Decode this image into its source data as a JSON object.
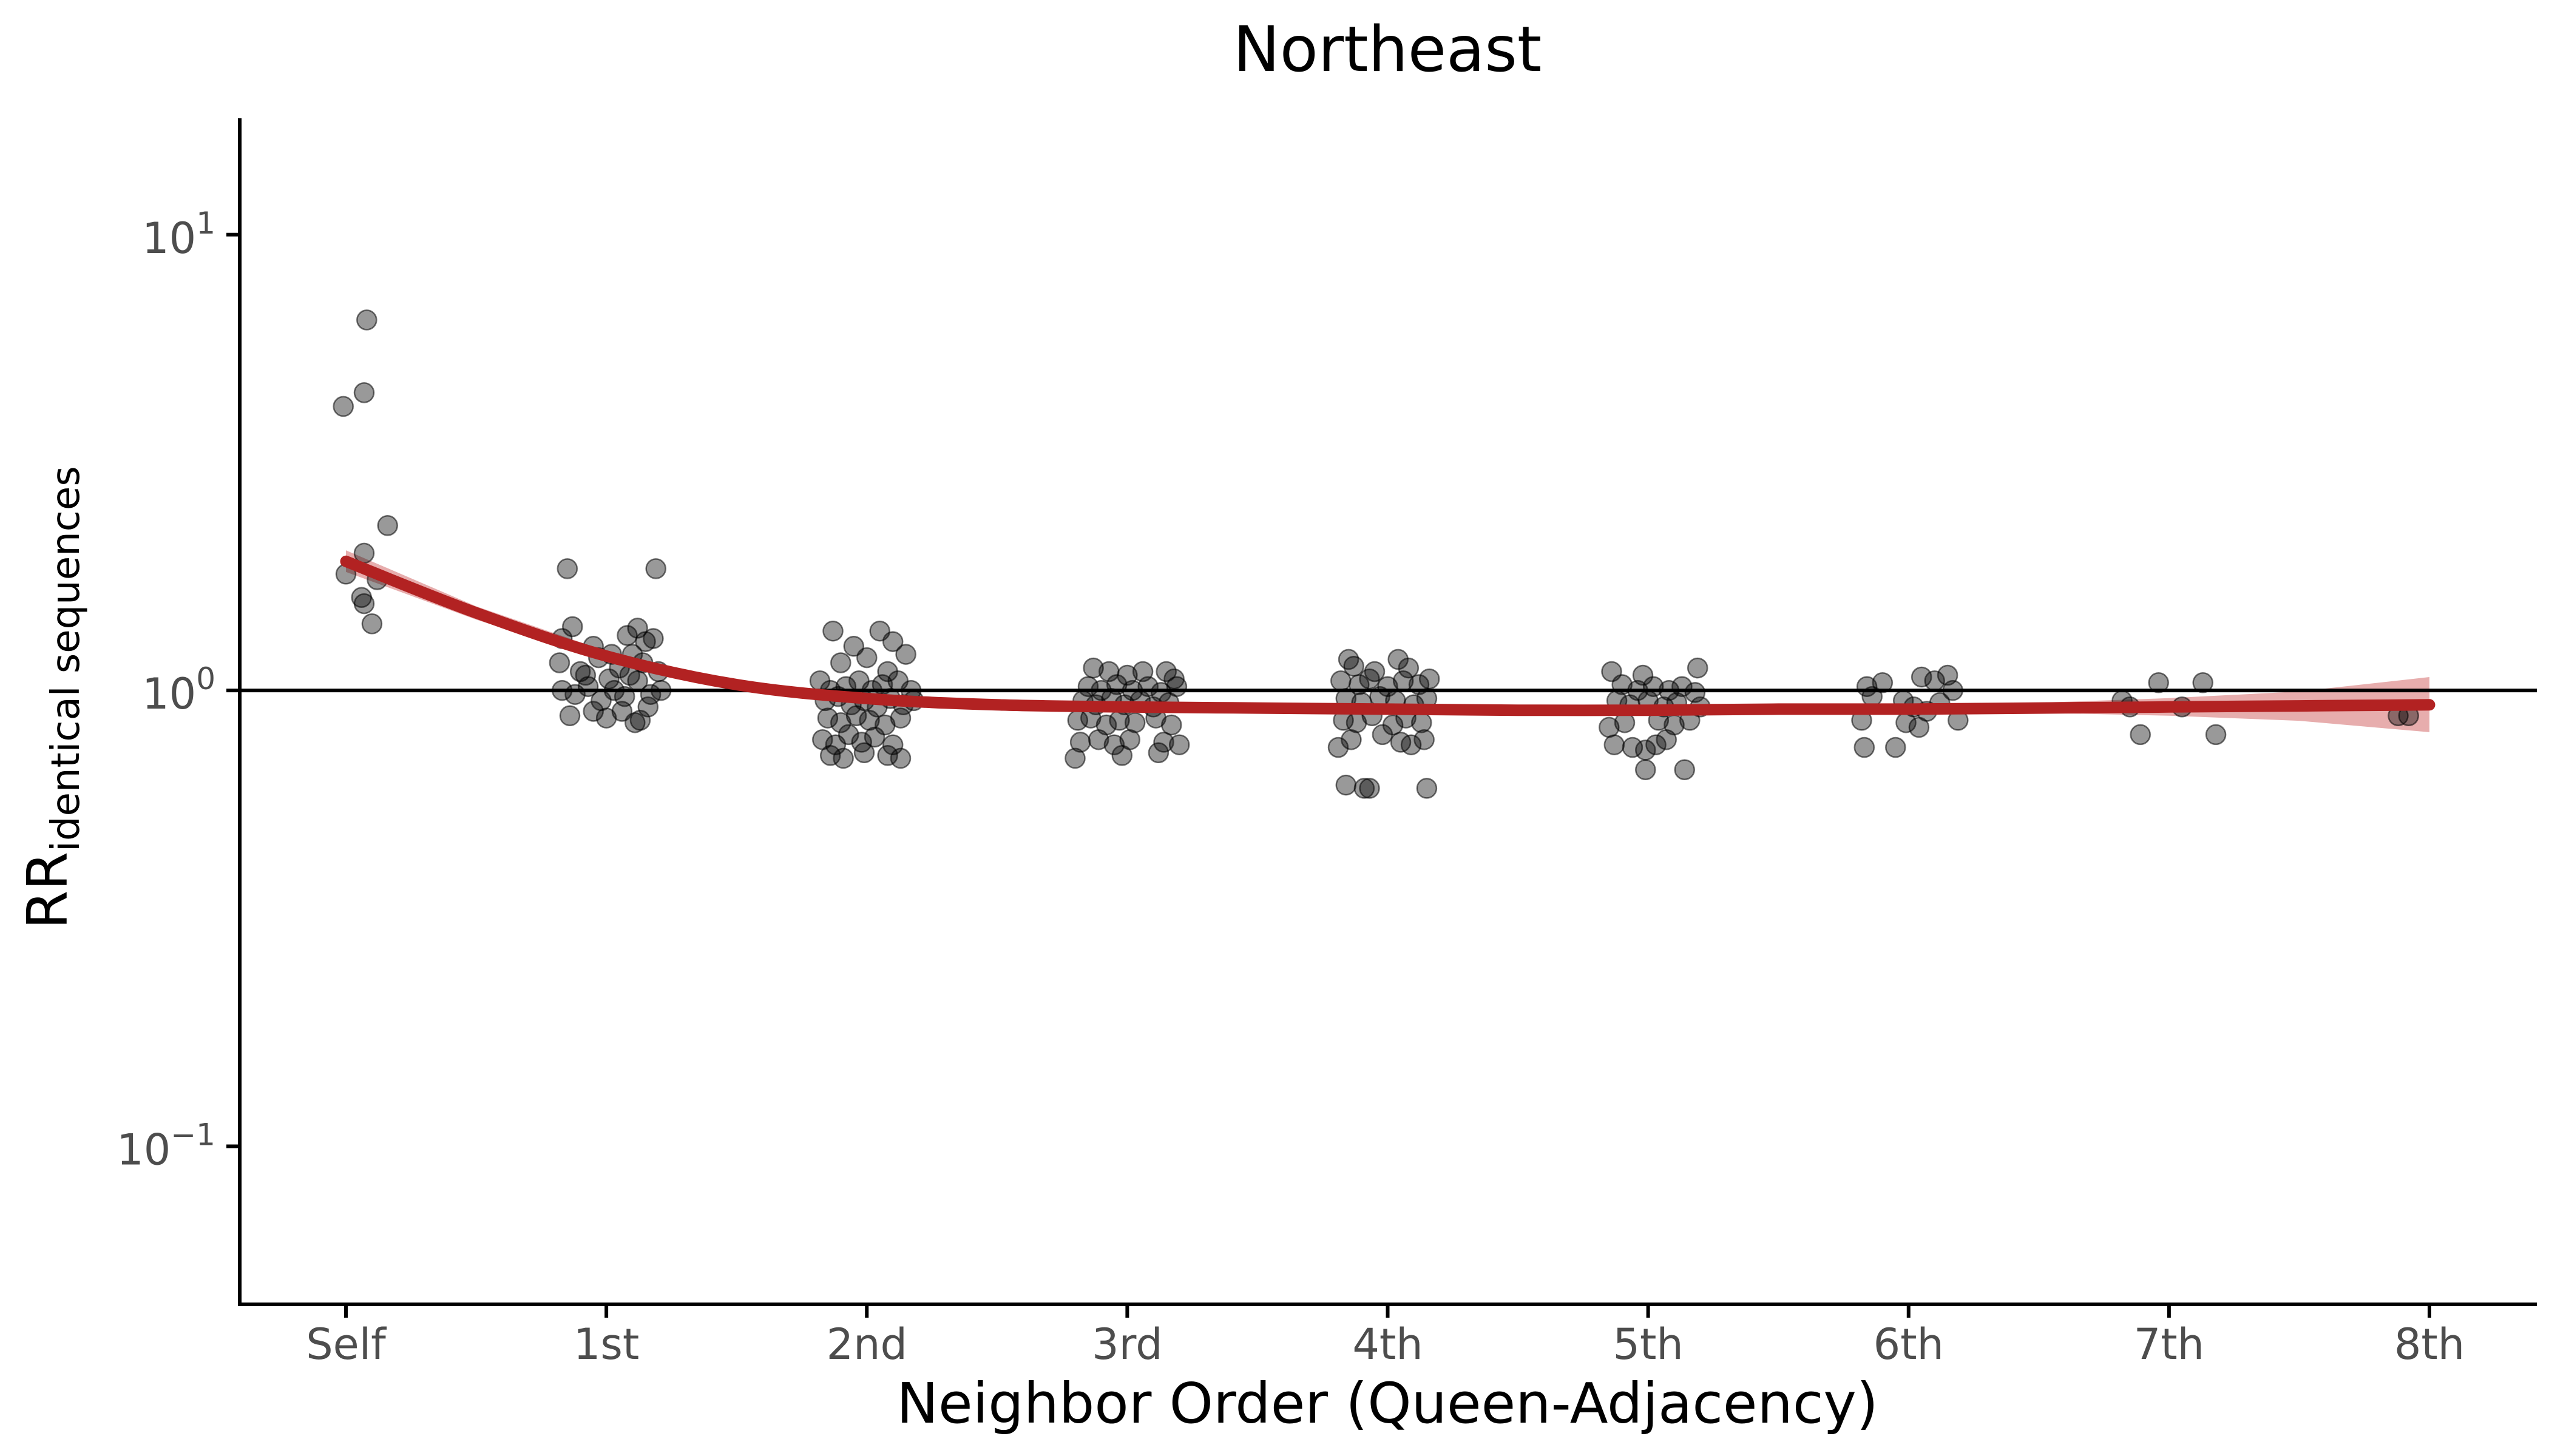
{
  "chart_data": {
    "type": "scatter",
    "title": "Northeast",
    "xlabel": "Neighbor Order (Queen-Adjacency)",
    "ylabel": {
      "main": "RR",
      "subscript": "identical sequences"
    },
    "y_scale": "log10",
    "ylim": [
      0.045,
      18
    ],
    "y_ticks": [
      {
        "value": 0.1,
        "base": "10",
        "exponent": "−1"
      },
      {
        "value": 1,
        "base": "10",
        "exponent": "0"
      },
      {
        "value": 10,
        "base": "10",
        "exponent": "1"
      }
    ],
    "categories": [
      "Self",
      "1st",
      "2nd",
      "3rd",
      "4th",
      "5th",
      "6th",
      "7th",
      "8th"
    ],
    "reference_line": {
      "y": 1,
      "color": "#000000"
    },
    "grid": false,
    "legend": "none",
    "colors": {
      "points": "#000000",
      "point_opacity": 0.4,
      "smooth_line": "#b22222",
      "confidence_band": "#d46a6a",
      "band_opacity": 0.55
    },
    "points": [
      {
        "x": -0.01,
        "y": 4.2
      },
      {
        "x": 0.07,
        "y": 4.5
      },
      {
        "x": 0.08,
        "y": 6.5
      },
      {
        "x": 0.16,
        "y": 2.3
      },
      {
        "x": 0.0,
        "y": 1.8
      },
      {
        "x": 0.07,
        "y": 2.0
      },
      {
        "x": 0.12,
        "y": 1.75
      },
      {
        "x": 0.06,
        "y": 1.6
      },
      {
        "x": 0.07,
        "y": 1.55
      },
      {
        "x": 0.1,
        "y": 1.4
      },
      {
        "x": 0.85,
        "y": 1.85
      },
      {
        "x": 1.19,
        "y": 1.85
      },
      {
        "x": 0.83,
        "y": 1.3
      },
      {
        "x": 0.87,
        "y": 1.38
      },
      {
        "x": 0.95,
        "y": 1.25
      },
      {
        "x": 1.02,
        "y": 1.2
      },
      {
        "x": 1.08,
        "y": 1.32
      },
      {
        "x": 1.12,
        "y": 1.37
      },
      {
        "x": 1.15,
        "y": 1.28
      },
      {
        "x": 1.18,
        "y": 1.3
      },
      {
        "x": 0.82,
        "y": 1.15
      },
      {
        "x": 0.9,
        "y": 1.1
      },
      {
        "x": 0.97,
        "y": 1.18
      },
      {
        "x": 1.05,
        "y": 1.12
      },
      {
        "x": 1.1,
        "y": 1.2
      },
      {
        "x": 1.14,
        "y": 1.15
      },
      {
        "x": 1.2,
        "y": 1.1
      },
      {
        "x": 0.83,
        "y": 1.0
      },
      {
        "x": 0.88,
        "y": 0.98
      },
      {
        "x": 0.93,
        "y": 1.02
      },
      {
        "x": 0.98,
        "y": 0.95
      },
      {
        "x": 1.03,
        "y": 1.0
      },
      {
        "x": 1.07,
        "y": 0.97
      },
      {
        "x": 1.12,
        "y": 1.05
      },
      {
        "x": 1.17,
        "y": 0.98
      },
      {
        "x": 1.21,
        "y": 1.0
      },
      {
        "x": 0.86,
        "y": 0.88
      },
      {
        "x": 0.95,
        "y": 0.9
      },
      {
        "x": 1.0,
        "y": 0.87
      },
      {
        "x": 1.06,
        "y": 0.9
      },
      {
        "x": 1.11,
        "y": 0.85
      },
      {
        "x": 1.13,
        "y": 0.86
      },
      {
        "x": 1.16,
        "y": 0.92
      },
      {
        "x": 0.92,
        "y": 1.08
      },
      {
        "x": 1.01,
        "y": 1.06
      },
      {
        "x": 1.09,
        "y": 1.08
      },
      {
        "x": 1.87,
        "y": 1.35
      },
      {
        "x": 2.05,
        "y": 1.35
      },
      {
        "x": 2.1,
        "y": 1.28
      },
      {
        "x": 1.95,
        "y": 1.25
      },
      {
        "x": 2.15,
        "y": 1.2
      },
      {
        "x": 1.9,
        "y": 1.15
      },
      {
        "x": 2.0,
        "y": 1.18
      },
      {
        "x": 2.08,
        "y": 1.1
      },
      {
        "x": 1.82,
        "y": 1.05
      },
      {
        "x": 1.86,
        "y": 1.0
      },
      {
        "x": 1.92,
        "y": 1.02
      },
      {
        "x": 1.97,
        "y": 1.05
      },
      {
        "x": 2.02,
        "y": 1.0
      },
      {
        "x": 2.06,
        "y": 1.03
      },
      {
        "x": 2.12,
        "y": 1.05
      },
      {
        "x": 2.17,
        "y": 1.0
      },
      {
        "x": 1.84,
        "y": 0.95
      },
      {
        "x": 1.89,
        "y": 0.97
      },
      {
        "x": 1.94,
        "y": 0.93
      },
      {
        "x": 1.99,
        "y": 0.95
      },
      {
        "x": 2.04,
        "y": 0.92
      },
      {
        "x": 2.09,
        "y": 0.96
      },
      {
        "x": 2.14,
        "y": 0.93
      },
      {
        "x": 2.18,
        "y": 0.95
      },
      {
        "x": 1.85,
        "y": 0.87
      },
      {
        "x": 1.9,
        "y": 0.85
      },
      {
        "x": 1.96,
        "y": 0.88
      },
      {
        "x": 2.01,
        "y": 0.86
      },
      {
        "x": 2.07,
        "y": 0.84
      },
      {
        "x": 2.13,
        "y": 0.87
      },
      {
        "x": 1.83,
        "y": 0.78
      },
      {
        "x": 1.88,
        "y": 0.76
      },
      {
        "x": 1.93,
        "y": 0.8
      },
      {
        "x": 1.98,
        "y": 0.77
      },
      {
        "x": 2.03,
        "y": 0.79
      },
      {
        "x": 2.1,
        "y": 0.76
      },
      {
        "x": 1.86,
        "y": 0.72
      },
      {
        "x": 1.91,
        "y": 0.71
      },
      {
        "x": 1.99,
        "y": 0.73
      },
      {
        "x": 2.08,
        "y": 0.72
      },
      {
        "x": 2.13,
        "y": 0.71
      },
      {
        "x": 2.87,
        "y": 1.12
      },
      {
        "x": 2.93,
        "y": 1.1
      },
      {
        "x": 3.0,
        "y": 1.08
      },
      {
        "x": 3.06,
        "y": 1.1
      },
      {
        "x": 3.15,
        "y": 1.1
      },
      {
        "x": 3.18,
        "y": 1.06
      },
      {
        "x": 2.85,
        "y": 1.02
      },
      {
        "x": 2.9,
        "y": 1.0
      },
      {
        "x": 2.96,
        "y": 1.03
      },
      {
        "x": 3.02,
        "y": 1.0
      },
      {
        "x": 3.08,
        "y": 1.02
      },
      {
        "x": 3.13,
        "y": 0.99
      },
      {
        "x": 3.19,
        "y": 1.02
      },
      {
        "x": 2.83,
        "y": 0.95
      },
      {
        "x": 2.88,
        "y": 0.93
      },
      {
        "x": 2.94,
        "y": 0.96
      },
      {
        "x": 2.99,
        "y": 0.93
      },
      {
        "x": 3.05,
        "y": 0.95
      },
      {
        "x": 3.1,
        "y": 0.92
      },
      {
        "x": 3.16,
        "y": 0.94
      },
      {
        "x": 2.81,
        "y": 0.86
      },
      {
        "x": 2.86,
        "y": 0.87
      },
      {
        "x": 2.92,
        "y": 0.84
      },
      {
        "x": 2.97,
        "y": 0.86
      },
      {
        "x": 3.03,
        "y": 0.85
      },
      {
        "x": 3.11,
        "y": 0.87
      },
      {
        "x": 3.17,
        "y": 0.84
      },
      {
        "x": 2.82,
        "y": 0.77
      },
      {
        "x": 2.89,
        "y": 0.78
      },
      {
        "x": 2.95,
        "y": 0.76
      },
      {
        "x": 3.01,
        "y": 0.78
      },
      {
        "x": 3.14,
        "y": 0.77
      },
      {
        "x": 3.2,
        "y": 0.76
      },
      {
        "x": 2.8,
        "y": 0.71
      },
      {
        "x": 2.98,
        "y": 0.72
      },
      {
        "x": 3.12,
        "y": 0.73
      },
      {
        "x": 3.85,
        "y": 1.17
      },
      {
        "x": 3.87,
        "y": 1.13
      },
      {
        "x": 4.04,
        "y": 1.17
      },
      {
        "x": 4.08,
        "y": 1.12
      },
      {
        "x": 3.95,
        "y": 1.1
      },
      {
        "x": 3.82,
        "y": 1.05
      },
      {
        "x": 3.89,
        "y": 1.03
      },
      {
        "x": 3.93,
        "y": 1.06
      },
      {
        "x": 4.0,
        "y": 1.02
      },
      {
        "x": 4.06,
        "y": 1.05
      },
      {
        "x": 4.12,
        "y": 1.03
      },
      {
        "x": 4.16,
        "y": 1.06
      },
      {
        "x": 3.84,
        "y": 0.96
      },
      {
        "x": 3.9,
        "y": 0.94
      },
      {
        "x": 3.97,
        "y": 0.97
      },
      {
        "x": 4.03,
        "y": 0.95
      },
      {
        "x": 4.1,
        "y": 0.93
      },
      {
        "x": 4.15,
        "y": 0.96
      },
      {
        "x": 3.83,
        "y": 0.86
      },
      {
        "x": 3.88,
        "y": 0.85
      },
      {
        "x": 3.94,
        "y": 0.88
      },
      {
        "x": 4.02,
        "y": 0.84
      },
      {
        "x": 4.07,
        "y": 0.87
      },
      {
        "x": 4.13,
        "y": 0.85
      },
      {
        "x": 3.86,
        "y": 0.78
      },
      {
        "x": 3.98,
        "y": 0.8
      },
      {
        "x": 4.05,
        "y": 0.77
      },
      {
        "x": 4.09,
        "y": 0.76
      },
      {
        "x": 4.14,
        "y": 0.78
      },
      {
        "x": 3.81,
        "y": 0.75
      },
      {
        "x": 3.84,
        "y": 0.62
      },
      {
        "x": 3.91,
        "y": 0.61
      },
      {
        "x": 3.93,
        "y": 0.61
      },
      {
        "x": 4.15,
        "y": 0.61
      },
      {
        "x": 4.86,
        "y": 1.1
      },
      {
        "x": 4.98,
        "y": 1.08
      },
      {
        "x": 5.19,
        "y": 1.12
      },
      {
        "x": 4.9,
        "y": 1.03
      },
      {
        "x": 4.96,
        "y": 1.0
      },
      {
        "x": 5.02,
        "y": 1.02
      },
      {
        "x": 5.08,
        "y": 1.0
      },
      {
        "x": 5.13,
        "y": 1.02
      },
      {
        "x": 5.18,
        "y": 0.99
      },
      {
        "x": 4.88,
        "y": 0.95
      },
      {
        "x": 4.93,
        "y": 0.93
      },
      {
        "x": 5.0,
        "y": 0.95
      },
      {
        "x": 5.06,
        "y": 0.92
      },
      {
        "x": 5.11,
        "y": 0.94
      },
      {
        "x": 5.2,
        "y": 0.92
      },
      {
        "x": 4.85,
        "y": 0.83
      },
      {
        "x": 4.91,
        "y": 0.85
      },
      {
        "x": 5.04,
        "y": 0.86
      },
      {
        "x": 5.1,
        "y": 0.84
      },
      {
        "x": 5.16,
        "y": 0.86
      },
      {
        "x": 4.87,
        "y": 0.76
      },
      {
        "x": 4.94,
        "y": 0.75
      },
      {
        "x": 4.99,
        "y": 0.74
      },
      {
        "x": 5.03,
        "y": 0.76
      },
      {
        "x": 5.07,
        "y": 0.78
      },
      {
        "x": 4.99,
        "y": 0.67
      },
      {
        "x": 5.14,
        "y": 0.67
      },
      {
        "x": 5.84,
        "y": 1.02
      },
      {
        "x": 5.9,
        "y": 1.04
      },
      {
        "x": 6.05,
        "y": 1.07
      },
      {
        "x": 6.1,
        "y": 1.05
      },
      {
        "x": 6.15,
        "y": 1.08
      },
      {
        "x": 6.17,
        "y": 1.0
      },
      {
        "x": 5.86,
        "y": 0.97
      },
      {
        "x": 5.98,
        "y": 0.95
      },
      {
        "x": 6.02,
        "y": 0.92
      },
      {
        "x": 6.07,
        "y": 0.9
      },
      {
        "x": 6.12,
        "y": 0.94
      },
      {
        "x": 5.82,
        "y": 0.86
      },
      {
        "x": 5.99,
        "y": 0.85
      },
      {
        "x": 6.04,
        "y": 0.83
      },
      {
        "x": 6.19,
        "y": 0.86
      },
      {
        "x": 5.83,
        "y": 0.75
      },
      {
        "x": 5.95,
        "y": 0.75
      },
      {
        "x": 6.82,
        "y": 0.95
      },
      {
        "x": 6.85,
        "y": 0.92
      },
      {
        "x": 6.96,
        "y": 1.04
      },
      {
        "x": 7.05,
        "y": 0.92
      },
      {
        "x": 7.13,
        "y": 1.04
      },
      {
        "x": 6.89,
        "y": 0.8
      },
      {
        "x": 7.18,
        "y": 0.8
      },
      {
        "x": 7.88,
        "y": 0.88
      },
      {
        "x": 7.92,
        "y": 0.88
      }
    ],
    "smooth_fit": {
      "x": [
        0,
        0.5,
        1,
        1.5,
        2,
        2.5,
        3,
        3.5,
        4,
        4.5,
        5,
        5.5,
        6,
        6.5,
        7,
        7.5,
        8
      ],
      "y": [
        1.92,
        1.48,
        1.19,
        1.03,
        0.96,
        0.93,
        0.92,
        0.915,
        0.91,
        0.905,
        0.905,
        0.91,
        0.91,
        0.915,
        0.92,
        0.925,
        0.93
      ],
      "lower": [
        1.82,
        1.43,
        1.16,
        1.015,
        0.95,
        0.925,
        0.915,
        0.91,
        0.905,
        0.9,
        0.897,
        0.9,
        0.897,
        0.893,
        0.88,
        0.858,
        0.81
      ],
      "upper": [
        2.03,
        1.53,
        1.22,
        1.045,
        0.97,
        0.935,
        0.925,
        0.92,
        0.915,
        0.912,
        0.913,
        0.92,
        0.925,
        0.94,
        0.962,
        0.995,
        1.07
      ]
    }
  }
}
